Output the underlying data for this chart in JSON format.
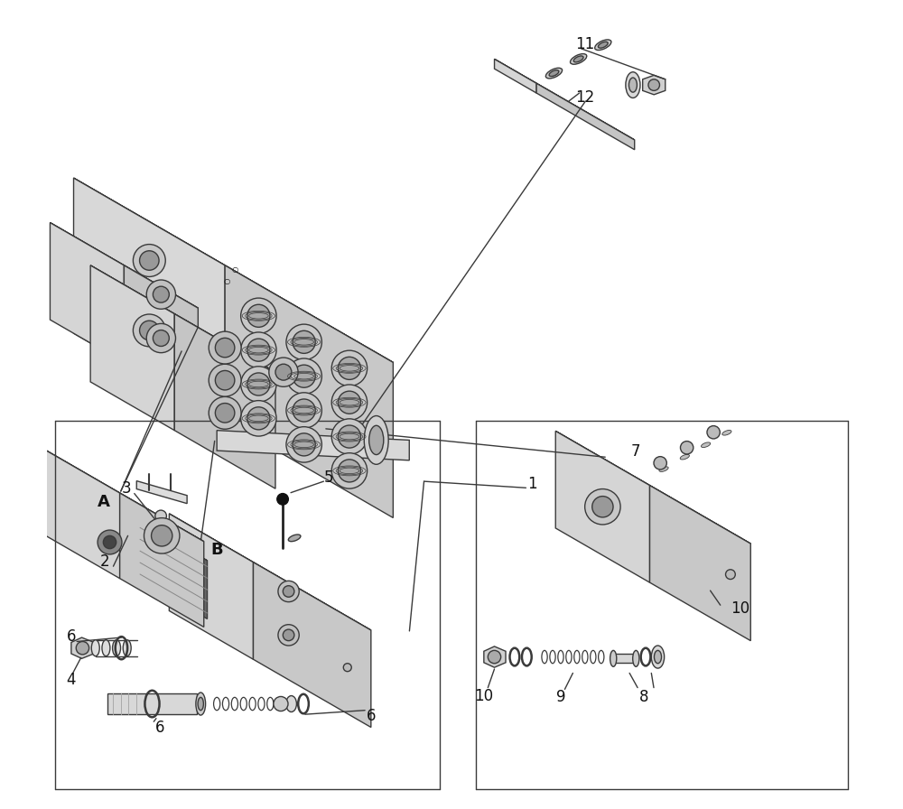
{
  "bg_color": "#ffffff",
  "lc": "#3a3a3a",
  "lw": 1.0,
  "figsize": [
    10.0,
    8.96
  ],
  "dpi": 100,
  "face_top": "#eeeeee",
  "face_left": "#d8d8d8",
  "face_right": "#c8c8c8",
  "face_dark": "#aaaaaa",
  "coil_dark": "#555555",
  "coil_stripe": "#888888"
}
